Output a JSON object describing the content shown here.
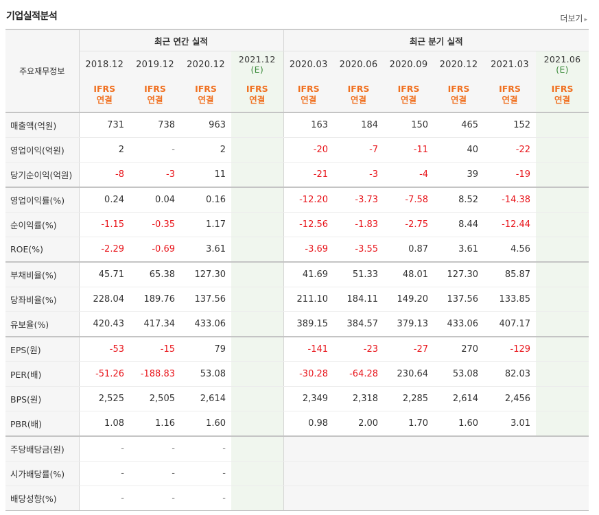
{
  "section_title": "기업실적분석",
  "more_label": "더보기",
  "more_arrow": "▸",
  "header": {
    "row_label": "주요재무정보",
    "annual_group": "최근 연간 실적",
    "quarter_group": "최근 분기 실적",
    "annual_periods": [
      {
        "label": "2018.12",
        "sub": ""
      },
      {
        "label": "2019.12",
        "sub": ""
      },
      {
        "label": "2020.12",
        "sub": ""
      },
      {
        "label": "2021.12",
        "sub": "(E)"
      }
    ],
    "quarter_periods": [
      {
        "label": "2020.03",
        "sub": ""
      },
      {
        "label": "2020.06",
        "sub": ""
      },
      {
        "label": "2020.09",
        "sub": ""
      },
      {
        "label": "2020.12",
        "sub": ""
      },
      {
        "label": "2021.03",
        "sub": ""
      },
      {
        "label": "2021.06",
        "sub": "(E)"
      }
    ],
    "std_top": "IFRS",
    "std_bottom": "연결"
  },
  "rows": [
    {
      "label": "매출액(억원)",
      "annual": [
        "731",
        "738",
        "963",
        ""
      ],
      "quarter": [
        "163",
        "184",
        "150",
        "465",
        "152",
        ""
      ]
    },
    {
      "label": "영업이익(억원)",
      "annual": [
        "2",
        "-",
        "2",
        ""
      ],
      "quarter": [
        "-20",
        "-7",
        "-11",
        "40",
        "-22",
        ""
      ]
    },
    {
      "label": "당기순이익(억원)",
      "annual": [
        "-8",
        "-3",
        "11",
        ""
      ],
      "quarter": [
        "-21",
        "-3",
        "-4",
        "39",
        "-19",
        ""
      ]
    },
    {
      "label": "영업이익률(%)",
      "annual": [
        "0.24",
        "0.04",
        "0.16",
        ""
      ],
      "quarter": [
        "-12.20",
        "-3.73",
        "-7.58",
        "8.52",
        "-14.38",
        ""
      ]
    },
    {
      "label": "순이익률(%)",
      "annual": [
        "-1.15",
        "-0.35",
        "1.17",
        ""
      ],
      "quarter": [
        "-12.56",
        "-1.83",
        "-2.75",
        "8.44",
        "-12.44",
        ""
      ]
    },
    {
      "label": "ROE(%)",
      "annual": [
        "-2.29",
        "-0.69",
        "3.61",
        ""
      ],
      "quarter": [
        "-3.69",
        "-3.55",
        "0.87",
        "3.61",
        "4.56",
        ""
      ]
    },
    {
      "label": "부채비율(%)",
      "annual": [
        "45.71",
        "65.38",
        "127.30",
        ""
      ],
      "quarter": [
        "41.69",
        "51.33",
        "48.01",
        "127.30",
        "85.87",
        ""
      ]
    },
    {
      "label": "당좌비율(%)",
      "annual": [
        "228.04",
        "189.76",
        "137.56",
        ""
      ],
      "quarter": [
        "211.10",
        "184.11",
        "149.20",
        "137.56",
        "133.85",
        ""
      ]
    },
    {
      "label": "유보율(%)",
      "annual": [
        "420.43",
        "417.34",
        "433.06",
        ""
      ],
      "quarter": [
        "389.15",
        "384.57",
        "379.13",
        "433.06",
        "407.17",
        ""
      ]
    },
    {
      "label": "EPS(원)",
      "annual": [
        "-53",
        "-15",
        "79",
        ""
      ],
      "quarter": [
        "-141",
        "-23",
        "-27",
        "270",
        "-129",
        ""
      ]
    },
    {
      "label": "PER(배)",
      "annual": [
        "-51.26",
        "-188.83",
        "53.08",
        ""
      ],
      "quarter": [
        "-30.28",
        "-64.28",
        "230.64",
        "53.08",
        "82.03",
        ""
      ]
    },
    {
      "label": "BPS(원)",
      "annual": [
        "2,525",
        "2,505",
        "2,614",
        ""
      ],
      "quarter": [
        "2,349",
        "2,318",
        "2,285",
        "2,614",
        "2,456",
        ""
      ]
    },
    {
      "label": "PBR(배)",
      "annual": [
        "1.08",
        "1.16",
        "1.60",
        ""
      ],
      "quarter": [
        "0.98",
        "2.00",
        "1.70",
        "1.60",
        "3.01",
        ""
      ]
    },
    {
      "label": "주당배당금(원)",
      "annual": [
        "-",
        "-",
        "-",
        ""
      ],
      "quarter": null
    },
    {
      "label": "시가배당률(%)",
      "annual": [
        "-",
        "-",
        "-",
        ""
      ],
      "quarter": null
    },
    {
      "label": "배당성향(%)",
      "annual": [
        "-",
        "-",
        "-",
        ""
      ],
      "quarter": null
    }
  ]
}
